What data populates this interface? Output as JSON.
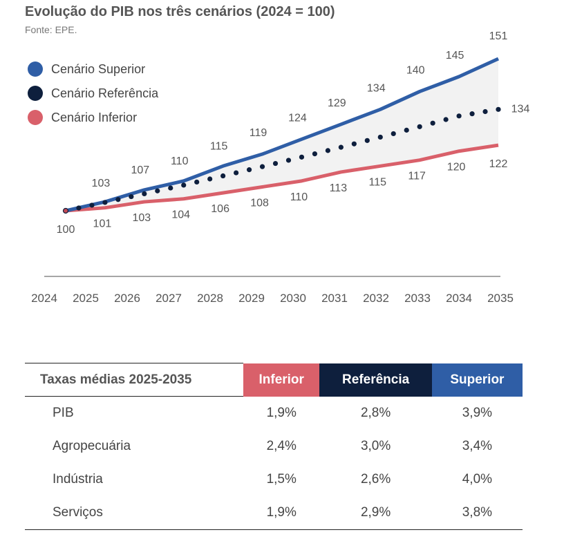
{
  "chart_data": {
    "type": "line",
    "title": "Evolução do PIB nos três cenários (2024 = 100)",
    "subtitle": "Fonte: EPE.",
    "x": [
      "2024",
      "2025",
      "2026",
      "2027",
      "2028",
      "2029",
      "2030",
      "2031",
      "2032",
      "2033",
      "2034",
      "2035"
    ],
    "ylim": [
      100,
      151
    ],
    "series": [
      {
        "name": "Cenário Superior",
        "color": "#2f5ea6",
        "style": "solid",
        "values": [
          100,
          103,
          107,
          110,
          115,
          119,
          124,
          129,
          134,
          140,
          145,
          151
        ],
        "labels": [
          "100",
          "103",
          "107",
          "110",
          "115",
          "119",
          "124",
          "129",
          "134",
          "140",
          "145",
          "151"
        ]
      },
      {
        "name": "Cenário Referência",
        "color": "#0e1f3d",
        "style": "dotted",
        "values": [
          100,
          102.8,
          105.7,
          108.6,
          111.7,
          114.8,
          118.0,
          121.3,
          124.7,
          128.2,
          131.8,
          134
        ],
        "labels": [
          "",
          "",
          "",
          "",
          "",
          "",
          "",
          "",
          "",
          "",
          "",
          "134"
        ]
      },
      {
        "name": "Cenário Inferior",
        "color": "#d9606a",
        "style": "solid",
        "values": [
          100,
          101,
          103,
          104,
          106,
          108,
          110,
          113,
          115,
          117,
          120,
          122
        ],
        "labels": [
          "",
          "101",
          "103",
          "104",
          "106",
          "108",
          "110",
          "113",
          "115",
          "117",
          "120",
          "122"
        ]
      }
    ],
    "legend": "top-left"
  },
  "table": {
    "header": {
      "label": "Taxas médias 2025-2035",
      "inferior": "Inferior",
      "referencia": "Referência",
      "superior": "Superior"
    },
    "rows": [
      {
        "label": "PIB",
        "inferior": "1,9%",
        "referencia": "2,8%",
        "superior": "3,9%"
      },
      {
        "label": "Agropecuária",
        "inferior": "2,4%",
        "referencia": "3,0%",
        "superior": "3,4%"
      },
      {
        "label": "Indústria",
        "inferior": "1,5%",
        "referencia": "2,6%",
        "superior": "4,0%"
      },
      {
        "label": "Serviços",
        "inferior": "1,9%",
        "referencia": "2,9%",
        "superior": "3,8%"
      }
    ]
  }
}
